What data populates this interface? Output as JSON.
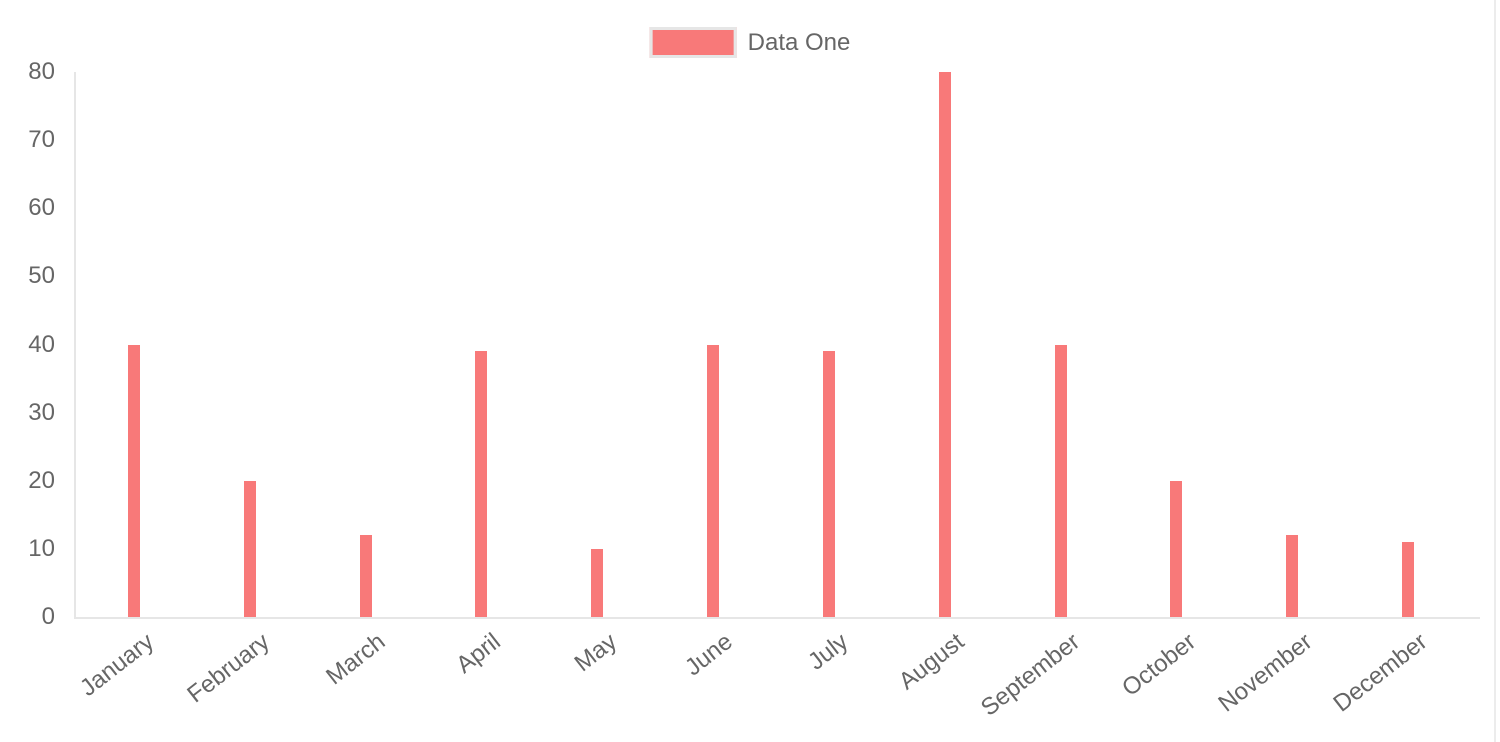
{
  "chart_data": {
    "type": "bar",
    "title": "",
    "categories": [
      "January",
      "February",
      "March",
      "April",
      "May",
      "June",
      "July",
      "August",
      "September",
      "October",
      "November",
      "December"
    ],
    "series": [
      {
        "name": "Data One",
        "color": "#f87979",
        "values": [
          40,
          20,
          12,
          39,
          10,
          40,
          39,
          80,
          40,
          20,
          12,
          11
        ]
      }
    ],
    "xlabel": "",
    "ylabel": "",
    "ylim": [
      0,
      80
    ],
    "yticks": [
      0,
      10,
      20,
      30,
      40,
      50,
      60,
      70,
      80
    ],
    "grid": false,
    "legend_position": "top-center",
    "x_tick_rotation_deg": -38
  },
  "legend": {
    "items": [
      {
        "label": "Data One",
        "swatch_color": "#f87979",
        "swatch_border_color": "#e6e6e6"
      }
    ]
  },
  "style": {
    "bar_color": "#f87979",
    "axis_line_color": "#e6e6e6",
    "tick_label_color": "#666666",
    "background": "#ffffff",
    "right_edge_line_color": "#ececec"
  }
}
